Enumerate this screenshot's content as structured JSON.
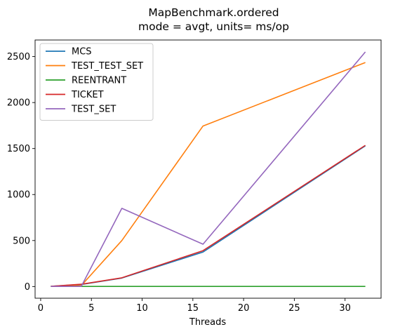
{
  "chart_data": {
    "type": "line",
    "title": "MapBenchmark.ordered",
    "subtitle": "mode = avgt, units= ms/op",
    "xlabel": "Threads",
    "ylabel": "",
    "x": [
      1,
      4,
      8,
      16,
      32
    ],
    "xlim": [
      -0.55,
      33.55
    ],
    "ylim": [
      -127,
      2680
    ],
    "xticks": [
      0,
      5,
      10,
      15,
      20,
      25,
      30
    ],
    "yticks": [
      0,
      500,
      1000,
      1500,
      2000,
      2500
    ],
    "grid": false,
    "legend_position": "top-left",
    "series": [
      {
        "name": "MCS",
        "color": "#1f77b4",
        "values": [
          2,
          22,
          92,
          375,
          1530
        ]
      },
      {
        "name": "TEST_TEST_SET",
        "color": "#ff7f0e",
        "values": [
          1,
          10,
          500,
          1745,
          2435
        ]
      },
      {
        "name": "REENTRANT",
        "color": "#2ca02c",
        "values": [
          1,
          1,
          1,
          1,
          1
        ]
      },
      {
        "name": "TICKET",
        "color": "#d62728",
        "values": [
          2,
          25,
          95,
          390,
          1535
        ]
      },
      {
        "name": "TEST_SET",
        "color": "#9467bd",
        "values": [
          1,
          1,
          850,
          460,
          2550
        ]
      }
    ]
  }
}
